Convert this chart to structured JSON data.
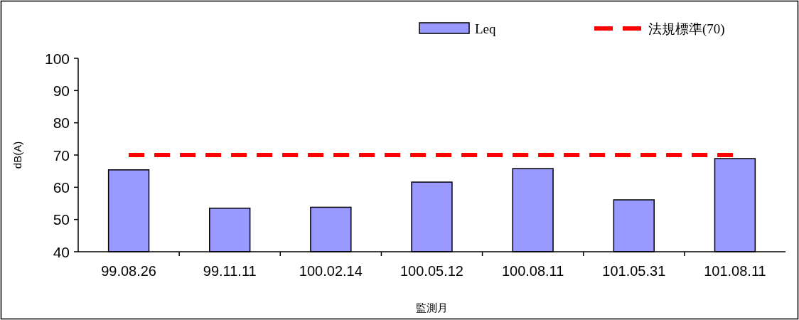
{
  "chart_data": {
    "type": "bar",
    "categories": [
      "99.08.26",
      "99.11.11",
      "100.02.14",
      "100.05.12",
      "100.08.11",
      "101.05.31",
      "101.08.11"
    ],
    "series": [
      {
        "name": "Leq",
        "color": "#9999ff",
        "values": [
          65.4,
          53.5,
          53.8,
          61.6,
          65.8,
          56.1,
          68.9
        ]
      },
      {
        "name": "法規標準(70)",
        "type": "line",
        "color": "#ff0000",
        "line_style": "dashed",
        "marker": "none",
        "values": [
          70,
          70,
          70,
          70,
          70,
          70,
          70
        ]
      }
    ],
    "xlabel": "監測月",
    "ylabel": "dB(A)",
    "ylim": [
      40,
      100
    ],
    "yticks": [
      40,
      50,
      60,
      70,
      80,
      90,
      100
    ],
    "grid": false,
    "legend": "top"
  }
}
